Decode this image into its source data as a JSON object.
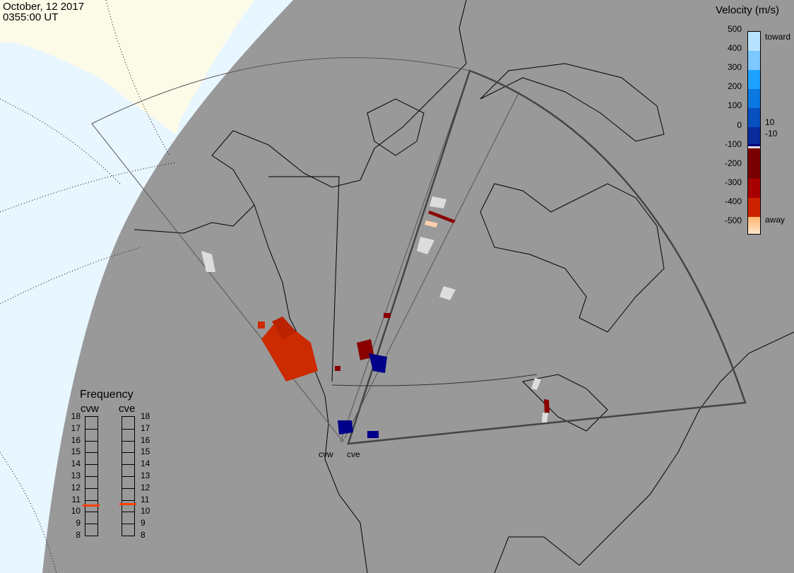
{
  "header": {
    "date": "October, 12 2017",
    "time": "0355:00 UT"
  },
  "sites": [
    {
      "code": "cvw"
    },
    {
      "code": "cve"
    }
  ],
  "colorbar": {
    "title": "Velocity (m/s)",
    "ticks": [
      "500",
      "400",
      "300",
      "200",
      "100",
      "0",
      "-100",
      "-200",
      "-300",
      "-400",
      "-500"
    ],
    "toward_label": "toward",
    "away_label": "away",
    "pos_threshold": "10",
    "neg_threshold": "-10",
    "colors": [
      "#b8e2ff",
      "#7cc8ff",
      "#1ea2ff",
      "#0a78e0",
      "#0650c0",
      "#0a2c9a",
      "#000078",
      "#dddddd",
      "#7a0000",
      "#a80000",
      "#cc2200",
      "#e05000",
      "#ff8a00",
      "#ffd0a0"
    ]
  },
  "frequency": {
    "title": "Frequency",
    "unit_range": [
      8,
      18
    ],
    "ticks": [
      "18",
      "17",
      "16",
      "15",
      "14",
      "13",
      "12",
      "11",
      "10",
      "9",
      "8"
    ],
    "radars": [
      {
        "label": "cvw",
        "value_mhz": 10.5
      },
      {
        "label": "cve",
        "value_mhz": 10.6
      }
    ],
    "marker_color": "#ff4000"
  },
  "map_colors": {
    "night": "#999999",
    "ocean_day": "#e8f6ff",
    "land_day": "#fcfbe8"
  }
}
